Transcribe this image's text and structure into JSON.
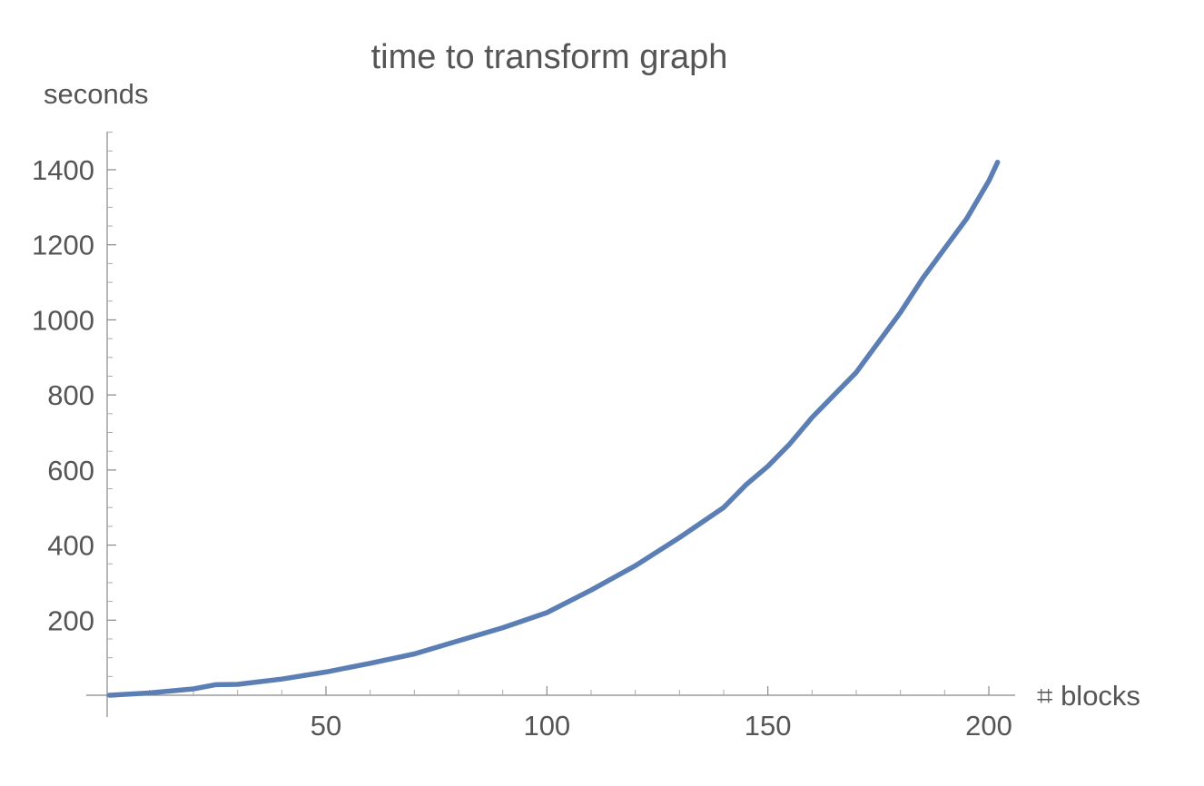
{
  "chart_data": {
    "type": "line",
    "title": "time to transform graph",
    "xlabel": "⌗ blocks",
    "ylabel": "seconds",
    "xlim": [
      0,
      205
    ],
    "ylim": [
      0,
      1500
    ],
    "x_ticks": [
      50,
      100,
      150,
      200
    ],
    "y_ticks": [
      200,
      400,
      600,
      800,
      1000,
      1200,
      1400
    ],
    "x_tick_labels": [
      "50",
      "100",
      "150",
      "200"
    ],
    "y_tick_labels": [
      "200",
      "400",
      "600",
      "800",
      "1000",
      "1200",
      "1400"
    ],
    "grid": false,
    "legend": "none",
    "colors": {
      "series": "#5b7fb5",
      "axis": "#888888",
      "text": "#555555"
    },
    "series": [
      {
        "x": [
          1,
          10,
          20,
          25,
          30,
          40,
          50,
          60,
          70,
          80,
          90,
          100,
          110,
          120,
          130,
          140,
          145,
          150,
          155,
          160,
          165,
          170,
          175,
          180,
          185,
          190,
          195,
          200,
          202
        ],
        "y": [
          0,
          6,
          17,
          28,
          29,
          43,
          62,
          85,
          110,
          145,
          180,
          220,
          280,
          345,
          420,
          500,
          560,
          610,
          670,
          740,
          800,
          860,
          940,
          1020,
          1110,
          1190,
          1270,
          1370,
          1420
        ]
      }
    ]
  }
}
